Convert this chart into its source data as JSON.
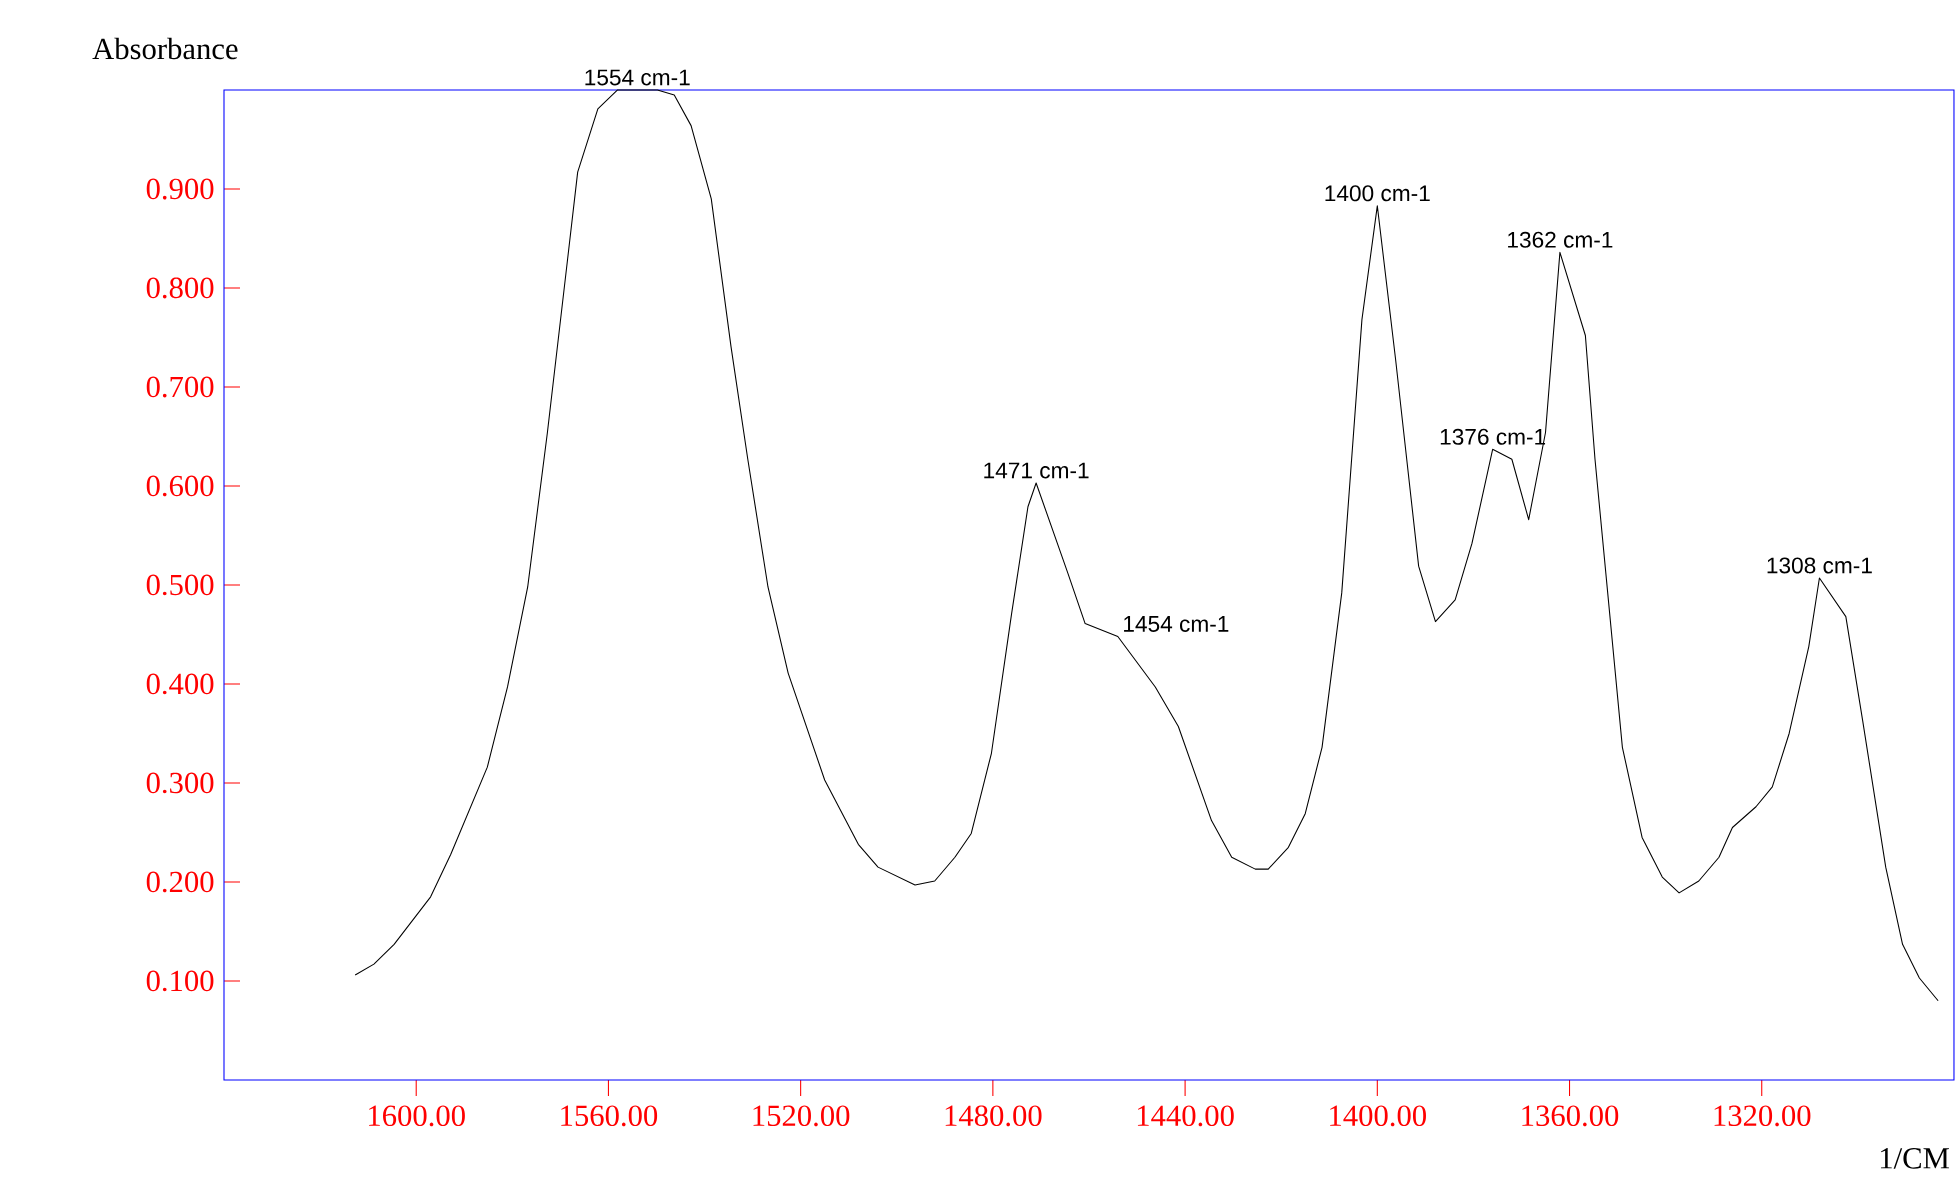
{
  "chart_data": {
    "type": "line",
    "xlabel": "1/CM",
    "ylabel": "Absorbance",
    "color": "#000000",
    "x": [
      1612.7,
      1608.8,
      1604.6,
      1597.0,
      1592.8,
      1585.2,
      1581.0,
      1576.8,
      1572.7,
      1568.5,
      1566.4,
      1562.2,
      1558.1,
      1554,
      1549.8,
      1546.3,
      1542.8,
      1538.6,
      1534.5,
      1531.0,
      1526.8,
      1522.6,
      1515.0,
      1508.0,
      1503.9,
      1496.2,
      1492.1,
      1487.9,
      1484.5,
      1480.3,
      1476.1,
      1472.7,
      1471,
      1464.4,
      1460.8,
      1454,
      1446.2,
      1441.4,
      1434.5,
      1430.3,
      1425.4,
      1422.7,
      1418.5,
      1415.0,
      1411.5,
      1407.4,
      1403.2,
      1400,
      1396.2,
      1391.4,
      1387.9,
      1383.8,
      1380.3,
      1376,
      1372.0,
      1368.5,
      1365.0,
      1362,
      1356.7,
      1354.7,
      1349.0,
      1344.9,
      1340.7,
      1337.2,
      1333.1,
      1328.9,
      1326.1,
      1321.2,
      1317.8,
      1314.3,
      1310.2,
      1308,
      1302.5,
      1299.0,
      1294.2,
      1290.7,
      1287.2,
      1283.3
    ],
    "values": [
      0.106,
      0.117,
      0.137,
      0.185,
      0.228,
      0.316,
      0.397,
      0.498,
      0.654,
      0.829,
      0.917,
      0.981,
      1.0,
      1.0,
      1.0,
      0.995,
      0.964,
      0.89,
      0.741,
      0.627,
      0.498,
      0.411,
      0.303,
      0.238,
      0.215,
      0.197,
      0.201,
      0.225,
      0.249,
      0.33,
      0.471,
      0.579,
      0.603,
      0.512,
      0.461,
      0.448,
      0.397,
      0.357,
      0.262,
      0.225,
      0.213,
      0.213,
      0.235,
      0.269,
      0.336,
      0.492,
      0.768,
      0.883,
      0.728,
      0.519,
      0.463,
      0.485,
      0.542,
      0.637,
      0.627,
      0.566,
      0.654,
      0.836,
      0.752,
      0.627,
      0.336,
      0.245,
      0.205,
      0.189,
      0.201,
      0.225,
      0.255,
      0.276,
      0.296,
      0.35,
      0.438,
      0.507,
      0.468,
      0.363,
      0.215,
      0.137,
      0.103,
      0.08
    ],
    "xlim": [
      1640,
      1280
    ],
    "ylim": [
      0,
      1.0
    ],
    "xticks": [
      {
        "value": 1600,
        "label": "1600.00"
      },
      {
        "value": 1560,
        "label": "1560.00"
      },
      {
        "value": 1520,
        "label": "1520.00"
      },
      {
        "value": 1480,
        "label": "1480.00"
      },
      {
        "value": 1440,
        "label": "1440.00"
      },
      {
        "value": 1400,
        "label": "1400.00"
      },
      {
        "value": 1360,
        "label": "1360.00"
      },
      {
        "value": 1320,
        "label": "1320.00"
      }
    ],
    "yticks": [
      {
        "value": 0.1,
        "label": "0.100"
      },
      {
        "value": 0.2,
        "label": "0.200"
      },
      {
        "value": 0.3,
        "label": "0.300"
      },
      {
        "value": 0.4,
        "label": "0.400"
      },
      {
        "value": 0.5,
        "label": "0.500"
      },
      {
        "value": 0.6,
        "label": "0.600"
      },
      {
        "value": 0.7,
        "label": "0.700"
      },
      {
        "value": 0.8,
        "label": "0.800"
      },
      {
        "value": 0.9,
        "label": "0.900"
      }
    ],
    "annotations": [
      {
        "text": "1554 cm-1",
        "x": 1554,
        "y": 1.0
      },
      {
        "text": "1471 cm-1",
        "x": 1471,
        "y": 0.603
      },
      {
        "text": "1454 cm-1",
        "x": 1454,
        "y": 0.448
      },
      {
        "text": "1400 cm-1",
        "x": 1400,
        "y": 0.883
      },
      {
        "text": "1376 cm-1",
        "x": 1376,
        "y": 0.637
      },
      {
        "text": "1362 cm-1",
        "x": 1362,
        "y": 0.836
      },
      {
        "text": "1308 cm-1",
        "x": 1308,
        "y": 0.507
      }
    ]
  }
}
